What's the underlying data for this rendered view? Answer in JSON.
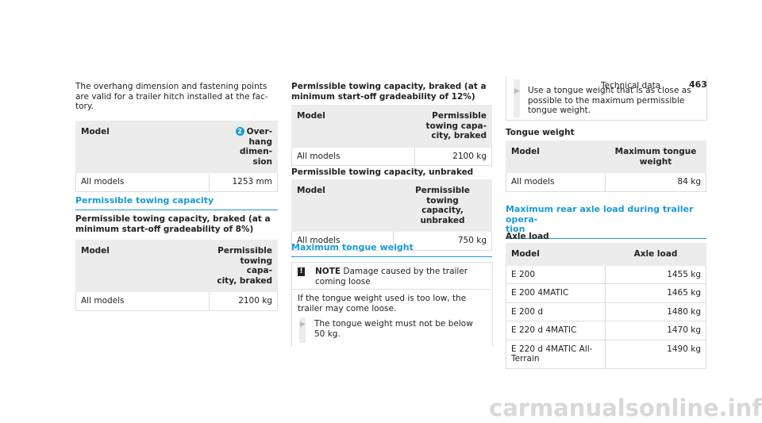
{
  "header": {
    "section": "Technical data",
    "page": "463"
  },
  "col1": {
    "intro": "The overhang dimension and fastening points\nare valid for a trailer hitch installed at the fac-\ntory.",
    "table1": {
      "badge": "2",
      "headers": [
        "Model",
        "Over-\nhang dimen-\nsion"
      ],
      "rows": [
        [
          "All models",
          "1253 mm"
        ]
      ]
    },
    "heading": "Permissible towing capacity",
    "subheading": "Permissible towing capacity, braked (at a\nminimum start-off gradeability of 8%)",
    "table2": {
      "headers": [
        "Model",
        "Permissible\ntowing capa-\ncity, braked"
      ],
      "rows": [
        [
          "All models",
          "2100 kg"
        ]
      ]
    }
  },
  "col2": {
    "subheading1": "Permissible towing capacity, braked (at a\nminimum start-off gradeability of 12%)",
    "table1": {
      "headers": [
        "Model",
        "Permissible\ntowing capa-\ncity, braked"
      ],
      "rows": [
        [
          "All models",
          "2100 kg"
        ]
      ]
    },
    "subheading2": "Permissible towing capacity, unbraked",
    "table2": {
      "headers": [
        "Model",
        "Permissible towing\ncapacity, unbraked"
      ],
      "rows": [
        [
          "All models",
          "750 kg"
        ]
      ]
    },
    "heading": "Maximum tongue weight",
    "note": {
      "label": "NOTE",
      "title": "Damage caused by the trailer\ncoming loose",
      "body": "If the tongue weight used is too low, the\ntrailer may come loose.",
      "step": "The tongue weight must not be below\n50 kg."
    }
  },
  "col3": {
    "step": "Use a tongue weight that is as close as\npossible to the maximum permissible\ntongue weight.",
    "subheading1": "Tongue weight",
    "table1": {
      "headers": [
        "Model",
        "Maximum tongue\nweight"
      ],
      "rows": [
        [
          "All models",
          "84 kg"
        ]
      ]
    },
    "heading": "Maximum rear axle load during trailer opera-\ntion",
    "subheading2": "Axle load",
    "table2": {
      "headers": [
        "Model",
        "Axle load"
      ],
      "rows": [
        [
          "E 200",
          "1455 kg"
        ],
        [
          "E 200 4MATIC",
          "1465 kg"
        ],
        [
          "E 200 d",
          "1480 kg"
        ],
        [
          "E 220 d 4MATIC",
          "1470 kg"
        ],
        [
          "E 220 d 4MATIC All-\nTerrain",
          "1490 kg"
        ]
      ]
    }
  },
  "watermark": "carmanualsonline.info"
}
